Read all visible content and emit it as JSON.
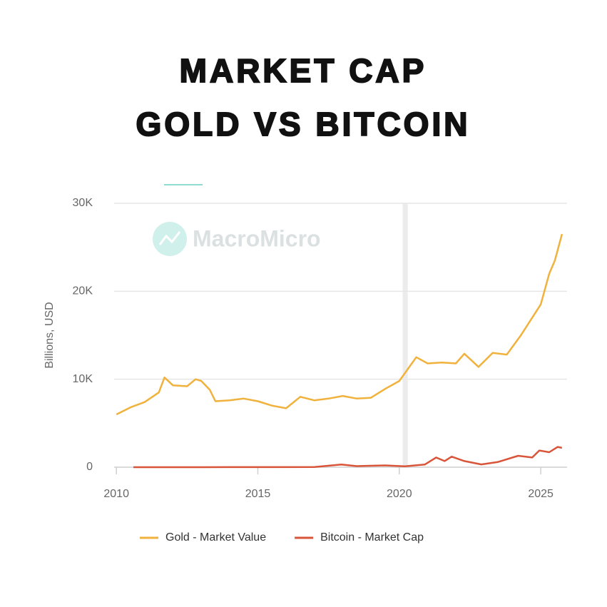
{
  "chart_data": {
    "type": "line",
    "title_lines": [
      "MARKET CAP",
      "GOLD VS BITCOIN"
    ],
    "watermark": "MacroMicro",
    "y_label": "Billions, USD",
    "xlim": [
      2009.92,
      2025.93
    ],
    "ylim": [
      0,
      30000
    ],
    "xticks": [
      2010,
      2015,
      2020,
      2025
    ],
    "yticks": [
      0,
      {
        "value": 10000,
        "label": "10K"
      },
      {
        "value": 20000,
        "label": "20K"
      },
      {
        "value": 30000,
        "label": "30K"
      }
    ],
    "grid": true,
    "highlight_x": [
      2020.12,
      2020.3
    ],
    "series": [
      {
        "name": "Gold - Market Value",
        "color": "#f0b23c",
        "x": [
          2010.0,
          2010.5,
          2011.0,
          2011.5,
          2011.7,
          2012.0,
          2012.5,
          2012.8,
          2013.0,
          2013.3,
          2013.5,
          2014.0,
          2014.5,
          2015.0,
          2015.5,
          2016.0,
          2016.5,
          2017.0,
          2017.5,
          2018.0,
          2018.5,
          2019.0,
          2019.5,
          2020.0,
          2020.6,
          2021.0,
          2021.5,
          2022.0,
          2022.3,
          2022.8,
          2023.3,
          2023.8,
          2024.3,
          2024.7,
          2025.0,
          2025.3,
          2025.5,
          2025.75
        ],
        "values": [
          6000,
          6800,
          7400,
          8500,
          10200,
          9300,
          9200,
          10000,
          9800,
          8800,
          7500,
          7600,
          7800,
          7500,
          7000,
          6700,
          8000,
          7600,
          7800,
          8100,
          7800,
          7900,
          8900,
          9800,
          12500,
          11800,
          11900,
          11800,
          12900,
          11400,
          13000,
          12800,
          15000,
          17000,
          18500,
          22000,
          23500,
          26500
        ]
      },
      {
        "name": "Bitcoin - Market Cap",
        "color": "#d9553a",
        "x": [
          2010.6,
          2013.0,
          2013.9,
          2014.5,
          2017.0,
          2017.95,
          2018.5,
          2019.5,
          2020.2,
          2020.9,
          2021.3,
          2021.6,
          2021.85,
          2022.3,
          2022.9,
          2023.5,
          2024.2,
          2024.7,
          2024.95,
          2025.3,
          2025.6,
          2025.75
        ],
        "values": [
          0,
          1,
          12,
          8,
          15,
          300,
          120,
          200,
          100,
          300,
          1100,
          700,
          1200,
          700,
          320,
          600,
          1300,
          1100,
          1900,
          1700,
          2300,
          2200
        ]
      }
    ]
  }
}
